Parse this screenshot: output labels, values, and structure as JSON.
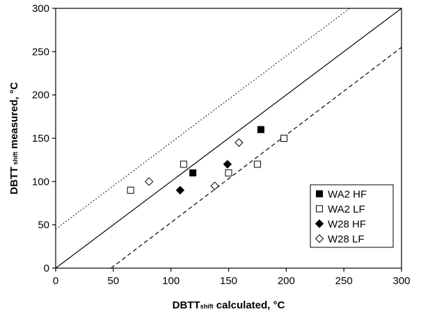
{
  "chart_data": {
    "type": "scatter",
    "xlabel": {
      "prefix": "DBTT",
      "sub": "shift",
      "suffix": " calculated, °C"
    },
    "ylabel": {
      "prefix": "DBTT",
      "sub": " shift",
      "suffix": " measured, °C"
    },
    "xlim": [
      0,
      300
    ],
    "ylim": [
      0,
      300
    ],
    "xticks": [
      0,
      50,
      100,
      150,
      200,
      250,
      300
    ],
    "yticks": [
      0,
      50,
      100,
      150,
      200,
      250,
      300
    ],
    "grid": false,
    "legend_position": "bottom-right",
    "lines": [
      {
        "style": "solid",
        "x": [
          0,
          300
        ],
        "y": [
          0,
          300
        ]
      },
      {
        "style": "dotted",
        "x": [
          0,
          255
        ],
        "y": [
          45,
          300
        ]
      },
      {
        "style": "dashed",
        "x": [
          48,
          300
        ],
        "y": [
          0,
          255
        ]
      }
    ],
    "series": [
      {
        "name": "WA2 HF",
        "marker": "square",
        "filled": true,
        "x": [
          119,
          178
        ],
        "y": [
          110,
          160
        ]
      },
      {
        "name": "WA2 LF",
        "marker": "square",
        "filled": false,
        "x": [
          65,
          111,
          150,
          175,
          198
        ],
        "y": [
          90,
          120,
          110,
          120,
          150
        ]
      },
      {
        "name": "W28 HF",
        "marker": "diamond",
        "filled": true,
        "x": [
          108,
          149
        ],
        "y": [
          90,
          120
        ]
      },
      {
        "name": "W28 LF",
        "marker": "diamond",
        "filled": false,
        "x": [
          81,
          138,
          159
        ],
        "y": [
          100,
          95,
          145
        ]
      }
    ]
  }
}
